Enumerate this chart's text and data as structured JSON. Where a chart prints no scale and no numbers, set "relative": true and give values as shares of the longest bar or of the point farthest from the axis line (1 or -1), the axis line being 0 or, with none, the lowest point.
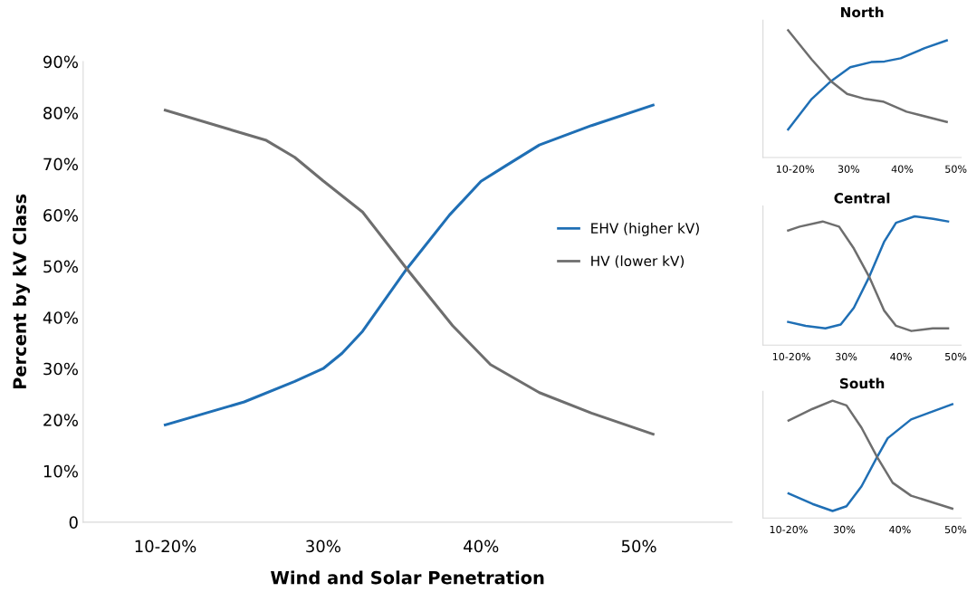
{
  "chart_data": [
    {
      "type": "line",
      "xlabel": "Wind and Solar Penetration",
      "ylabel": "Percent by kV Class",
      "xlim": [
        14.8,
        55.9
      ],
      "ylim": [
        0,
        90
      ],
      "xticks": [
        {
          "value": 20,
          "label": "10-20%"
        },
        {
          "value": 30,
          "label": "30%"
        },
        {
          "value": 40,
          "label": "40%"
        },
        {
          "value": 50,
          "label": "50%"
        }
      ],
      "yticks": [
        {
          "value": 0,
          "label": "0"
        },
        {
          "value": 10,
          "label": "10%"
        },
        {
          "value": 20,
          "label": "20%"
        },
        {
          "value": 30,
          "label": "30%"
        },
        {
          "value": 40,
          "label": "40%"
        },
        {
          "value": 50,
          "label": "50%"
        },
        {
          "value": 60,
          "label": "60%"
        },
        {
          "value": 70,
          "label": "70%"
        },
        {
          "value": 80,
          "label": "80%"
        },
        {
          "value": 90,
          "label": "90%"
        }
      ],
      "grid": false,
      "legend": "right",
      "series": [
        {
          "name": "EHV (higher kV)",
          "color": "#1f6fb5",
          "x": [
            20,
            25,
            28.2,
            30,
            31.2,
            32.5,
            35.3,
            38,
            40,
            41.5,
            43.7,
            47,
            50.9
          ],
          "values": [
            19,
            23.5,
            27.5,
            30,
            33,
            37.3,
            49.5,
            60,
            66.6,
            69.5,
            73.7,
            77.5,
            81.5
          ]
        },
        {
          "name": "HV (lower kV)",
          "color": "#6e6e6e",
          "x": [
            20,
            26.4,
            28.2,
            30,
            32.5,
            35.3,
            38.2,
            40.6,
            43.7,
            47,
            50.9
          ],
          "values": [
            80.5,
            74.6,
            71.3,
            66.7,
            60.6,
            49.5,
            38.4,
            30.8,
            25.3,
            21.3,
            17.2
          ]
        }
      ]
    },
    {
      "type": "line",
      "title": "North",
      "relative": true,
      "xlim": [
        14,
        51
      ],
      "tick_labels": "x",
      "xticks": [
        {
          "value": 20,
          "label": "10-20%"
        },
        {
          "value": 30,
          "label": "30%"
        },
        {
          "value": 40,
          "label": "40%"
        },
        {
          "value": 50,
          "label": "50%"
        }
      ],
      "series": [
        {
          "color": "#1f6fb5",
          "x": [
            18.7,
            23.1,
            26.7,
            30.3,
            34.2,
            36.7,
            39.7,
            44.2,
            48.3
          ],
          "values": [
            0.22,
            0.46,
            0.6,
            0.71,
            0.75,
            0.755,
            0.78,
            0.86,
            0.92
          ]
        },
        {
          "color": "#6e6e6e",
          "x": [
            18.7,
            23.1,
            26.7,
            29.7,
            33.1,
            36.4,
            40.8,
            48.3
          ],
          "values": [
            1.0,
            0.77,
            0.6,
            0.5,
            0.46,
            0.44,
            0.36,
            0.28
          ]
        }
      ]
    },
    {
      "type": "line",
      "title": "Central",
      "relative": true,
      "xlim": [
        14.8,
        51
      ],
      "tick_labels": "x",
      "xticks": [
        {
          "value": 20,
          "label": "10-20%"
        },
        {
          "value": 30,
          "label": "30%"
        },
        {
          "value": 40,
          "label": "40%"
        },
        {
          "value": 50,
          "label": "50%"
        }
      ],
      "series": [
        {
          "color": "#1f6fb5",
          "x": [
            19.4,
            22.6,
            26.2,
            29,
            31.4,
            34.2,
            36.9,
            39.1,
            42.5,
            45.9,
            48.6
          ],
          "values": [
            0.18,
            0.15,
            0.13,
            0.16,
            0.29,
            0.53,
            0.8,
            0.95,
            1.0,
            0.98,
            0.96
          ]
        },
        {
          "color": "#6e6e6e",
          "x": [
            19.4,
            21.5,
            25.7,
            28.7,
            31.4,
            34.2,
            36.9,
            39.1,
            41.9,
            45.8,
            48.6
          ],
          "values": [
            0.89,
            0.92,
            0.96,
            0.92,
            0.75,
            0.53,
            0.27,
            0.15,
            0.11,
            0.13,
            0.13
          ]
        }
      ]
    },
    {
      "type": "line",
      "title": "South",
      "relative": true,
      "xlim": [
        15.4,
        51
      ],
      "tick_labels": "x",
      "xticks": [
        {
          "value": 20,
          "label": "10-20%"
        },
        {
          "value": 30,
          "label": "30%"
        },
        {
          "value": 40,
          "label": "40%"
        },
        {
          "value": 50,
          "label": "50%"
        }
      ],
      "series": [
        {
          "color": "#1f6fb5",
          "x": [
            20,
            24.3,
            27.9,
            30.4,
            33.1,
            35.9,
            37.8,
            42,
            45.4,
            49.4
          ],
          "values": [
            0.21,
            0.12,
            0.06,
            0.1,
            0.27,
            0.52,
            0.68,
            0.84,
            0.9,
            0.97
          ]
        },
        {
          "color": "#6e6e6e",
          "x": [
            20,
            24.3,
            27.9,
            30.4,
            33.1,
            35.9,
            38.7,
            42,
            49.4
          ],
          "values": [
            0.83,
            0.93,
            1.0,
            0.96,
            0.77,
            0.52,
            0.3,
            0.19,
            0.08
          ]
        }
      ]
    }
  ]
}
